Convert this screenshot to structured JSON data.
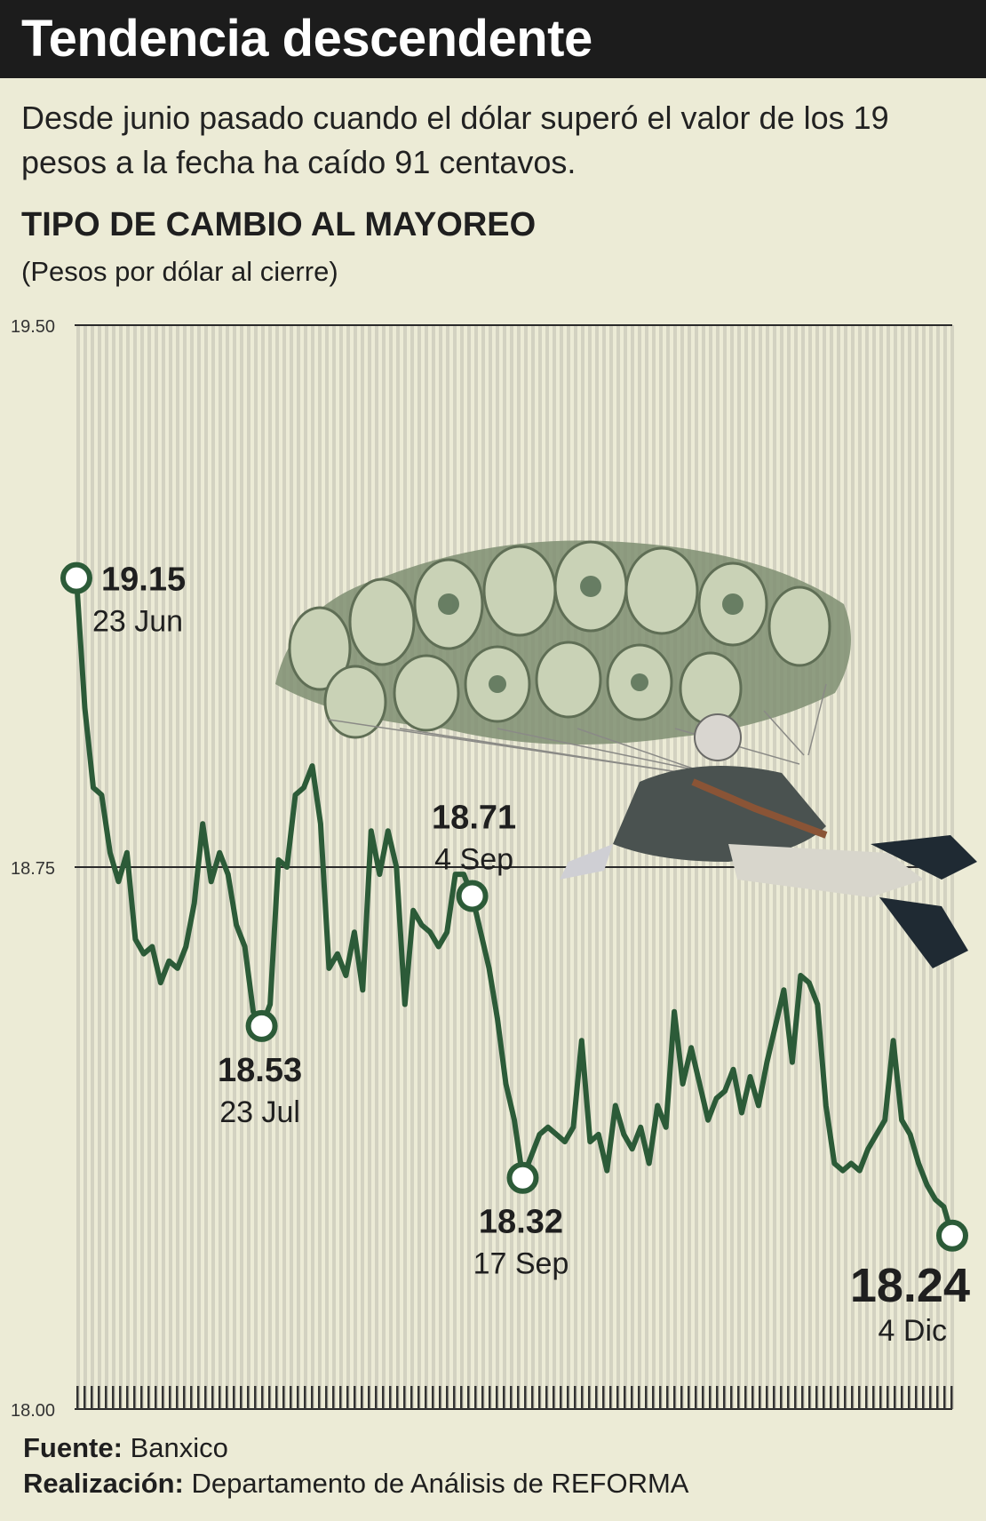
{
  "header": {
    "title": "Tendencia descendente",
    "subtitle": "Desde junio pasado cuando el dólar superó el valor de los 19 pesos a la fecha ha caído 91 centavos."
  },
  "chart": {
    "heading": "TIPO DE CAMBIO AL MAYOREO",
    "unit": "(Pesos por dólar al cierre)"
  },
  "footer": {
    "source_label": "Fuente:",
    "source_value": "Banxico",
    "credit_label": "Realización:",
    "credit_value": "Departamento de Análisis de REFORMA"
  },
  "colors": {
    "line": "#2c5b38",
    "background": "#ecebd6",
    "grid": "#d3d2c1",
    "title_bar": "#1c1c1c"
  },
  "illustration": "parachute-of-dollar-bills-with-figure-icon",
  "chart_data": {
    "type": "line",
    "ylabel": "",
    "ylim": [
      18.0,
      19.5
    ],
    "yticks": [
      "19.50",
      "18.75",
      "18.00"
    ],
    "grid": "vertical stripes plus horizontal lines at ticks",
    "values": [
      19.15,
      18.97,
      18.86,
      18.85,
      18.77,
      18.73,
      18.77,
      18.65,
      18.63,
      18.64,
      18.59,
      18.62,
      18.61,
      18.64,
      18.7,
      18.81,
      18.73,
      18.77,
      18.74,
      18.67,
      18.64,
      18.55,
      18.53,
      18.56,
      18.76,
      18.75,
      18.85,
      18.86,
      18.89,
      18.81,
      18.61,
      18.63,
      18.6,
      18.66,
      18.58,
      18.8,
      18.74,
      18.8,
      18.75,
      18.56,
      18.69,
      18.67,
      18.66,
      18.64,
      18.66,
      18.74,
      18.74,
      18.71,
      18.66,
      18.61,
      18.54,
      18.45,
      18.4,
      18.32,
      18.35,
      18.38,
      18.39,
      18.38,
      18.37,
      18.39,
      18.51,
      18.37,
      18.38,
      18.33,
      18.42,
      18.38,
      18.36,
      18.39,
      18.34,
      18.42,
      18.39,
      18.55,
      18.45,
      18.5,
      18.45,
      18.4,
      18.43,
      18.44,
      18.47,
      18.41,
      18.46,
      18.42,
      18.48,
      18.53,
      18.58,
      18.48,
      18.6,
      18.59,
      18.56,
      18.42,
      18.34,
      18.33,
      18.34,
      18.33,
      18.36,
      18.38,
      18.4,
      18.51,
      18.4,
      18.38,
      18.34,
      18.31,
      18.29,
      18.28,
      18.24
    ],
    "annotations": [
      {
        "index": 0,
        "value": "19.15",
        "date": "23 Jun",
        "position": "right"
      },
      {
        "index": 22,
        "value": "18.53",
        "date": "23 Jul",
        "position": "below"
      },
      {
        "index": 47,
        "value": "18.71",
        "date": "4 Sep",
        "position": "above"
      },
      {
        "index": 53,
        "value": "18.32",
        "date": "17 Sep",
        "position": "below"
      },
      {
        "index": 104,
        "value": "18.24",
        "date": "4 Dic",
        "position": "below-left-large"
      }
    ]
  }
}
